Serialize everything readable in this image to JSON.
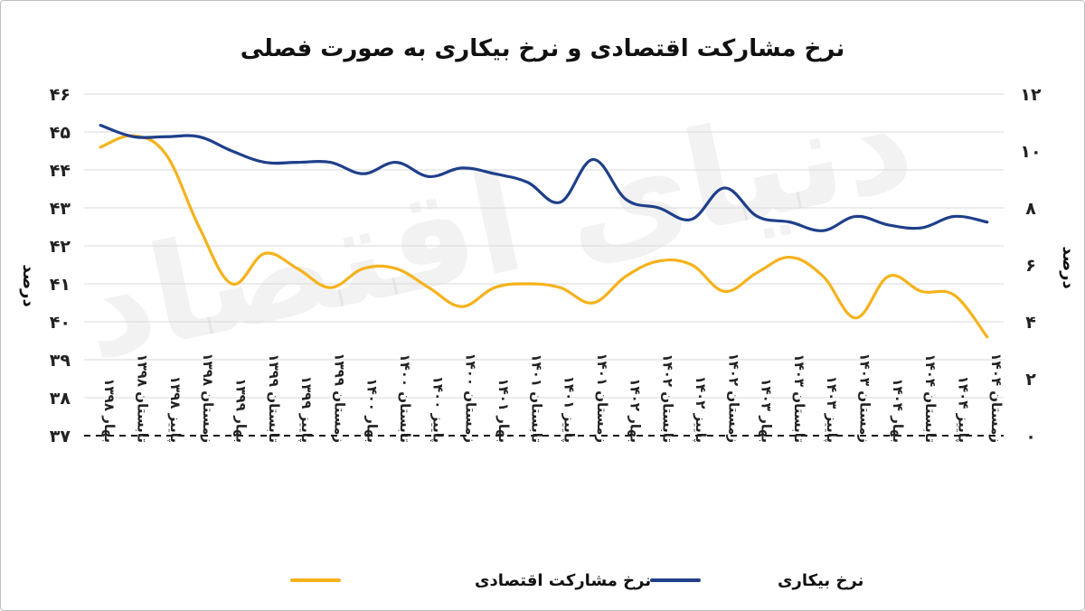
{
  "chart_data": {
    "type": "line",
    "title": "نرخ مشارکت اقتصادی و نرخ بیکاری به صورت فصلی",
    "categories": [
      "بهار ۱۳۹۸",
      "تابستان ۱۳۹۸",
      "پاییز ۱۳۹۸",
      "زمستان ۱۳۹۸",
      "بهار ۱۳۹۹",
      "تابستان ۱۳۹۹",
      "پاییز ۱۳۹۹",
      "زمستان ۱۳۹۹",
      "بهار ۱۴۰۰",
      "تابستان ۱۴۰۰",
      "پاییز ۱۴۰۰",
      "زمستان ۱۴۰۰",
      "بهار ۱۴۰۱",
      "تابستان ۱۴۰۱",
      "پاییز ۱۴۰۱",
      "زمستان ۱۴۰۱",
      "بهار ۱۴۰۲",
      "تابستان ۱۴۰۲",
      "پاییز ۱۴۰۲",
      "زمستان ۱۴۰۲",
      "بهار ۱۴۰۳",
      "تابستان ۱۴۰۳",
      "پاییز ۱۴۰۳",
      "زمستان ۱۴۰۳",
      "بهار ۱۴۰۴",
      "تابستان ۱۴۰۴",
      "پاییز ۱۴۰۴",
      "زمستان ۱۴۰۴"
    ],
    "series": [
      {
        "name": "نرخ مشارکت اقتصادی",
        "axis": "left",
        "color": "#F5B21B",
        "values": [
          44.6,
          44.9,
          44.4,
          42.5,
          41.0,
          41.8,
          41.4,
          40.9,
          41.4,
          41.4,
          40.9,
          40.4,
          40.9,
          41.0,
          40.9,
          40.5,
          41.2,
          41.6,
          41.5,
          40.8,
          41.3,
          41.7,
          41.2,
          40.1,
          41.2,
          40.8,
          40.7,
          39.6
        ]
      },
      {
        "name": "نرخ بیکاری",
        "axis": "right",
        "color": "#1F3F8A",
        "values": [
          10.9,
          10.5,
          10.5,
          10.5,
          10.0,
          9.6,
          9.6,
          9.6,
          9.2,
          9.6,
          9.1,
          9.4,
          9.2,
          8.9,
          8.2,
          9.7,
          8.3,
          8.0,
          7.6,
          8.7,
          7.7,
          7.5,
          7.2,
          7.7,
          7.4,
          7.3,
          7.7,
          7.5
        ]
      }
    ],
    "y_left": {
      "label": "درصد",
      "ylim": [
        37,
        46
      ],
      "ticks": [
        "۳۷",
        "۳۸",
        "۳۹",
        "۴۰",
        "۴۱",
        "۴۲",
        "۴۳",
        "۴۴",
        "۴۵",
        "۴۶"
      ]
    },
    "y_right": {
      "label": "درصد",
      "ylim": [
        0,
        12
      ],
      "ticks": [
        "۰",
        "۲",
        "۴",
        "۶",
        "۸",
        "۱۰",
        "۱۲"
      ]
    },
    "grid": true,
    "legend_position": "bottom",
    "watermark": "دنیای اقتصاد"
  }
}
